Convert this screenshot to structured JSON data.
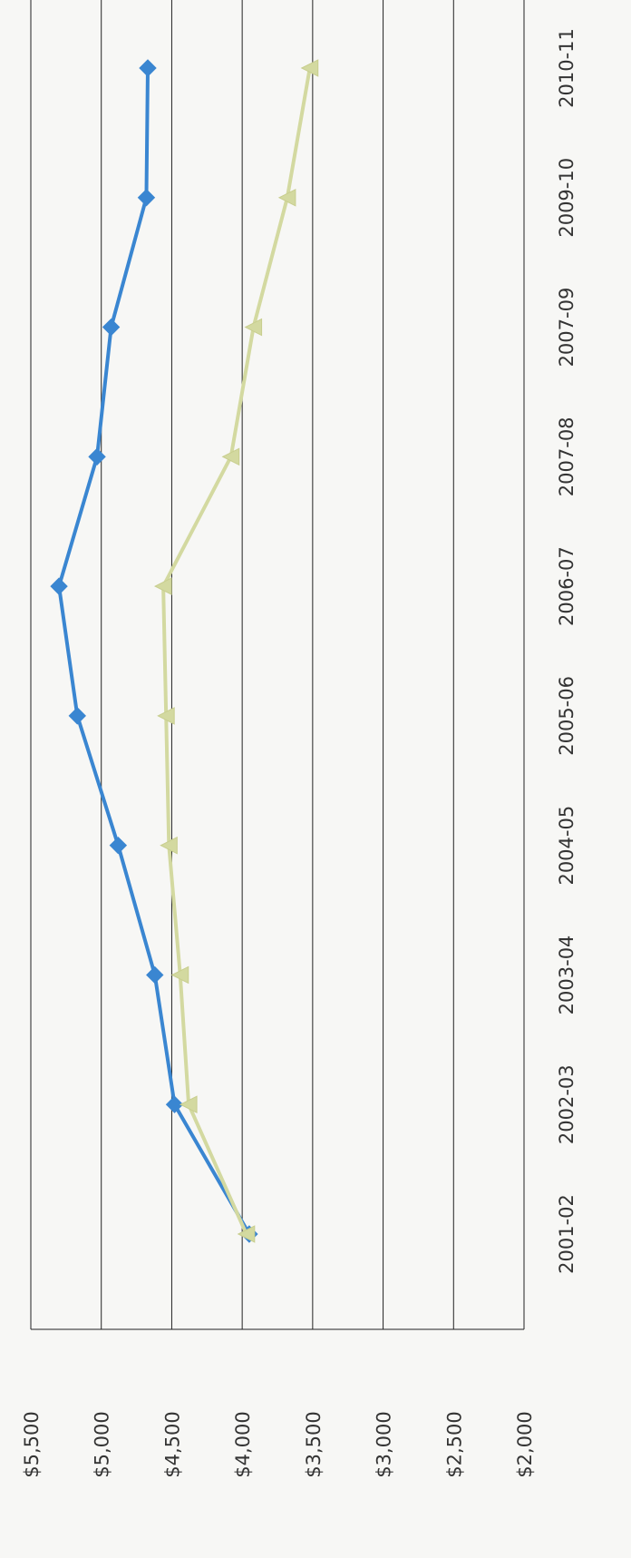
{
  "chart_data": {
    "type": "line",
    "orientation": "rotated-90",
    "categories": [
      "2001-02",
      "2002-03",
      "2003-04",
      "2004-05",
      "2005-06",
      "2006-07",
      "2007-08",
      "2007-09",
      "2009-10",
      "2010-11"
    ],
    "y_tick_labels": [
      "$5,500",
      "$5,000",
      "$4,500",
      "$4,000",
      "$3,500",
      "$3,000",
      "$2,500",
      "$2,000"
    ],
    "ylim": [
      2000,
      5500
    ],
    "grid": true,
    "series": [
      {
        "color": "#3a86d1",
        "marker": "diamond",
        "values": [
          3950,
          4480,
          4620,
          4880,
          5170,
          5300,
          5030,
          4930,
          4680,
          4670
        ]
      },
      {
        "color": "#d3d9a0",
        "marker": "triangle",
        "values": [
          3970,
          4380,
          4440,
          4520,
          4540,
          4560,
          4080,
          3920,
          3680,
          3520
        ]
      }
    ]
  }
}
